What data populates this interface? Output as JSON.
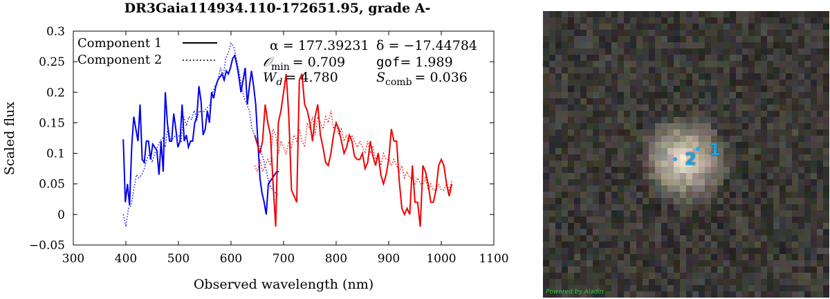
{
  "chart_data": {
    "type": "line",
    "title": "DR3Gaia114934.110-172651.95, grade A-",
    "xlabel": "Observed wavelength (nm)",
    "ylabel": "Scaled flux",
    "xlim": [
      300,
      1100
    ],
    "ylim": [
      -0.05,
      0.3
    ],
    "xticks": [
      300,
      400,
      500,
      600,
      700,
      800,
      900,
      1000,
      1100
    ],
    "yticks": [
      -0.05,
      0,
      0.05,
      0.1,
      0.15,
      0.2,
      0.25,
      0.3
    ],
    "ytick_labels": [
      "−0.05",
      "0",
      "0.05",
      "0.1",
      "0.15",
      "0.2",
      "0.25",
      "0.3"
    ],
    "grid": false,
    "legend_position": "top-left",
    "legend": [
      {
        "label": "Component 1",
        "style": "solid"
      },
      {
        "label": "Component 2",
        "style": "dotted"
      }
    ],
    "annotations": {
      "ra": "α = 177.39231",
      "dec": "δ = −17.44784",
      "omin_sym": "𝒪",
      "omin_sub": "min",
      "omin_val": "= 0.709",
      "gof_word": "gof",
      "gof_val": "= 1.989",
      "wd_sym": "W",
      "wd_sub": "d",
      "wd_val": "= 4.780",
      "scomb_sym": "S",
      "scomb_sub": "comb",
      "scomb_val": "= 0.036"
    },
    "series": [
      {
        "name": "Component 1",
        "arm": "blue",
        "color": "#0000ee",
        "style": "solid",
        "x": [
          395,
          399,
          403,
          407,
          411,
          415,
          419,
          423,
          427,
          431,
          435,
          439,
          443,
          447,
          451,
          455,
          459,
          463,
          467,
          471,
          475,
          479,
          483,
          487,
          491,
          495,
          499,
          503,
          507,
          511,
          515,
          519,
          523,
          527,
          531,
          535,
          539,
          543,
          547,
          551,
          555,
          559,
          563,
          567,
          571,
          575,
          579,
          583,
          587,
          591,
          595,
          599,
          603,
          607,
          611,
          615,
          619,
          623,
          627,
          631,
          635,
          639,
          643,
          647,
          651,
          655,
          659,
          663,
          667,
          671,
          675,
          679,
          683,
          687,
          691
        ],
        "y": [
          0.123,
          0.02,
          0.05,
          0.015,
          0.11,
          0.16,
          0.14,
          0.12,
          0.18,
          0.09,
          0.085,
          0.12,
          0.12,
          0.09,
          0.115,
          0.11,
          0.105,
          0.065,
          0.12,
          0.07,
          0.2,
          0.15,
          0.12,
          0.12,
          0.165,
          0.14,
          0.11,
          0.12,
          0.18,
          0.12,
          0.13,
          0.11,
          0.12,
          0.12,
          0.15,
          0.16,
          0.21,
          0.185,
          0.13,
          0.14,
          0.17,
          0.15,
          0.2,
          0.19,
          0.21,
          0.22,
          0.225,
          0.23,
          0.22,
          0.235,
          0.23,
          0.24,
          0.255,
          0.26,
          0.245,
          0.225,
          0.2,
          0.22,
          0.24,
          0.18,
          0.21,
          0.235,
          0.21,
          0.18,
          0.12,
          0.06,
          0.035,
          0.02,
          0.0,
          0.05,
          0.055,
          0.06,
          0.065,
          0.07,
          0.07
        ]
      },
      {
        "name": "Component 1",
        "arm": "red",
        "color": "#ee0000",
        "style": "solid",
        "x": [
          645,
          650,
          655,
          660,
          665,
          670,
          675,
          680,
          685,
          690,
          695,
          700,
          705,
          710,
          715,
          720,
          725,
          730,
          735,
          740,
          745,
          750,
          755,
          760,
          765,
          770,
          775,
          780,
          785,
          790,
          795,
          800,
          805,
          810,
          815,
          820,
          825,
          830,
          835,
          840,
          845,
          850,
          855,
          860,
          865,
          870,
          875,
          880,
          885,
          890,
          895,
          900,
          905,
          910,
          915,
          920,
          925,
          930,
          935,
          940,
          945,
          950,
          955,
          960,
          965,
          970,
          975,
          980,
          985,
          990,
          995,
          1000,
          1005,
          1010,
          1015,
          1020
        ],
        "y": [
          0.13,
          0.115,
          0.1,
          0.12,
          0.18,
          0.15,
          0.13,
          0.05,
          -0.02,
          0.15,
          0.17,
          0.2,
          0.23,
          0.16,
          0.04,
          0.03,
          0.02,
          0.22,
          0.23,
          0.18,
          0.17,
          0.15,
          0.12,
          0.16,
          0.18,
          0.13,
          0.11,
          0.085,
          0.08,
          0.1,
          0.13,
          0.15,
          0.14,
          0.12,
          0.1,
          0.11,
          0.13,
          0.12,
          0.095,
          0.09,
          0.09,
          0.1,
          0.075,
          0.085,
          0.12,
          0.095,
          0.08,
          0.1,
          0.065,
          0.05,
          0.065,
          0.09,
          0.14,
          0.12,
          0.12,
          0.055,
          0.01,
          0.0,
          0.01,
          0.0,
          0.08,
          0.02,
          0.02,
          -0.02,
          0.08,
          0.07,
          0.05,
          0.02,
          0.02,
          0.04,
          0.08,
          0.09,
          0.08,
          0.05,
          0.03,
          0.05
        ]
      },
      {
        "name": "Component 2",
        "arm": "blue",
        "color": "#0000ee",
        "style": "dotted",
        "x": [
          395,
          400,
          405,
          410,
          415,
          420,
          425,
          430,
          435,
          440,
          445,
          450,
          455,
          460,
          465,
          470,
          475,
          480,
          485,
          490,
          495,
          500,
          505,
          510,
          515,
          520,
          525,
          530,
          535,
          540,
          545,
          550,
          555,
          560,
          565,
          570,
          575,
          580,
          585,
          590,
          595,
          600,
          605,
          610,
          615,
          620,
          625,
          630,
          635,
          640,
          645,
          650,
          655,
          660,
          665,
          670,
          675,
          680,
          685,
          690
        ],
        "y": [
          0.0,
          -0.02,
          0.01,
          0.015,
          0.04,
          0.065,
          0.06,
          0.065,
          0.075,
          0.09,
          0.1,
          0.085,
          0.1,
          0.11,
          0.12,
          0.125,
          0.11,
          0.145,
          0.12,
          0.125,
          0.13,
          0.13,
          0.12,
          0.16,
          0.145,
          0.16,
          0.155,
          0.17,
          0.155,
          0.17,
          0.165,
          0.17,
          0.175,
          0.18,
          0.2,
          0.21,
          0.22,
          0.24,
          0.225,
          0.255,
          0.265,
          0.28,
          0.275,
          0.255,
          0.235,
          0.21,
          0.19,
          0.18,
          0.17,
          0.14,
          0.13,
          0.12,
          0.11,
          0.095,
          0.08,
          0.06,
          0.045,
          0.04,
          0.035,
          0.03
        ]
      },
      {
        "name": "Component 2",
        "arm": "red",
        "color": "#ee0000",
        "style": "dotted",
        "x": [
          645,
          650,
          655,
          660,
          665,
          670,
          675,
          680,
          685,
          690,
          695,
          700,
          705,
          710,
          715,
          720,
          725,
          730,
          735,
          740,
          745,
          750,
          755,
          760,
          765,
          770,
          775,
          780,
          785,
          790,
          795,
          800,
          805,
          810,
          815,
          820,
          825,
          830,
          835,
          840,
          845,
          850,
          855,
          860,
          865,
          870,
          875,
          880,
          885,
          890,
          895,
          900,
          905,
          910,
          915,
          920,
          925,
          930,
          935,
          940,
          945,
          950,
          955,
          960,
          965,
          970,
          975,
          980,
          985,
          990,
          995,
          1000,
          1005,
          1010,
          1015,
          1020
        ],
        "y": [
          0.08,
          0.07,
          0.09,
          0.07,
          0.08,
          0.09,
          0.08,
          0.14,
          0.13,
          0.1,
          0.12,
          0.11,
          0.1,
          0.12,
          0.11,
          0.13,
          0.12,
          0.14,
          0.12,
          0.11,
          0.15,
          0.14,
          0.16,
          0.13,
          0.16,
          0.15,
          0.14,
          0.16,
          0.15,
          0.17,
          0.14,
          0.15,
          0.13,
          0.14,
          0.12,
          0.13,
          0.12,
          0.13,
          0.12,
          0.11,
          0.12,
          0.11,
          0.1,
          0.12,
          0.1,
          0.11,
          0.09,
          0.1,
          0.08,
          0.1,
          0.09,
          0.09,
          0.08,
          0.09,
          0.08,
          0.07,
          0.08,
          0.06,
          0.07,
          0.06,
          0.06,
          0.05,
          0.06,
          0.05,
          0.05,
          0.06,
          0.04,
          0.05,
          0.04,
          0.04,
          0.05,
          0.04,
          0.04,
          0.05,
          0.04,
          0.055
        ]
      }
    ]
  },
  "sky_image": {
    "star_labels": [
      {
        "id": "1",
        "text": "1"
      },
      {
        "id": "2",
        "text": "2"
      }
    ],
    "powered_by": "Powered by Aladin"
  }
}
